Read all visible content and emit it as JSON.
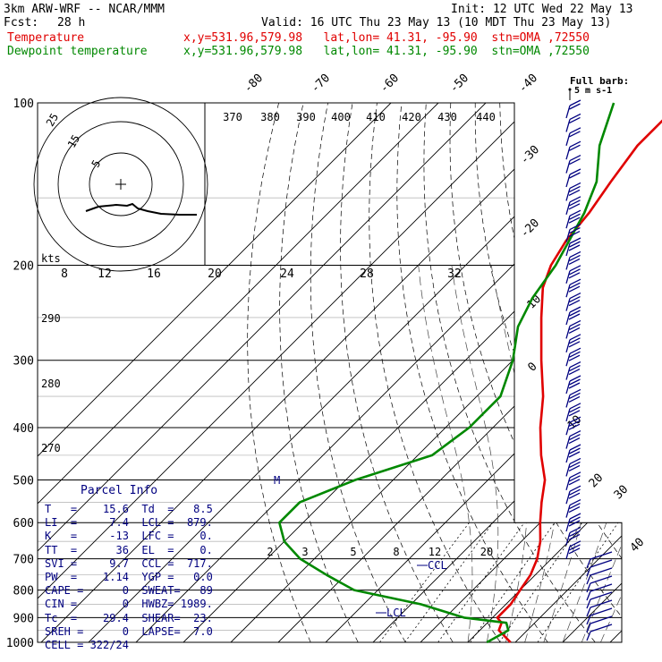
{
  "header": {
    "model": "3km ARW-WRF -- NCAR/MMM",
    "init": "Init: 12 UTC Wed 22 May 13",
    "fcst_label": "Fcst:",
    "fcst_value": "28 h",
    "valid": "Valid: 16 UTC Thu 23 May 13 (10 MDT Thu 23 May 13)",
    "temp_label": "Temperature",
    "temp_info": "x,y=531.96,579.98   lat,lon= 41.31, -95.90  stn=OMA ,72550",
    "dew_label": "Dewpoint temperature",
    "dew_info": "x,y=531.96,579.98   lat,lon= 41.31, -95.90  stn=OMA ,72550"
  },
  "colors": {
    "temperature": "#e00000",
    "dewpoint": "#008800",
    "info": "#000080"
  },
  "chart_data": {
    "type": "line",
    "title": "",
    "ylabel": "",
    "pressure_levels": [
      "100",
      "200",
      "300",
      "400",
      "500",
      "600",
      "700",
      "800",
      "900",
      "1000"
    ],
    "isotherm_labels": [
      "-80",
      "-70",
      "-60",
      "-50",
      "-40",
      "-30",
      "-20",
      "-10",
      "0",
      "10",
      "20",
      "30",
      "40"
    ],
    "theta_labels_top": [
      "370",
      "380",
      "390",
      "400",
      "410",
      "420",
      "430",
      "440"
    ],
    "theta_labels_side": [
      "290",
      "280",
      "270"
    ],
    "mixing_ratio_labels": [
      "2",
      "3",
      "5",
      "8",
      "12",
      "20"
    ],
    "hodograph": {
      "units_label": "kts",
      "speed_ticks": [
        "8",
        "12",
        "16",
        "20",
        "24",
        "28",
        "32"
      ],
      "ring_labels": [
        "5",
        "15",
        "25"
      ]
    },
    "series": [
      {
        "name": "Temperature",
        "points": [
          [
            1000,
            19
          ],
          [
            950,
            14
          ],
          [
            920,
            13
          ],
          [
            900,
            11
          ],
          [
            850,
            11
          ],
          [
            800,
            10
          ],
          [
            750,
            9
          ],
          [
            700,
            7
          ],
          [
            650,
            4
          ],
          [
            600,
            0
          ],
          [
            550,
            -4
          ],
          [
            500,
            -8
          ],
          [
            450,
            -14
          ],
          [
            400,
            -20
          ],
          [
            350,
            -26
          ],
          [
            300,
            -34
          ],
          [
            250,
            -43
          ],
          [
            220,
            -49
          ],
          [
            200,
            -52
          ],
          [
            180,
            -54
          ],
          [
            160,
            -55
          ],
          [
            140,
            -57
          ],
          [
            120,
            -59
          ],
          [
            100,
            -59
          ]
        ]
      },
      {
        "name": "Dewpoint temperature",
        "points": [
          [
            1000,
            14
          ],
          [
            950,
            16
          ],
          [
            920,
            14
          ],
          [
            900,
            4
          ],
          [
            850,
            -8
          ],
          [
            800,
            -25
          ],
          [
            750,
            -34
          ],
          [
            700,
            -43
          ],
          [
            650,
            -50
          ],
          [
            600,
            -55
          ],
          [
            550,
            -55
          ],
          [
            500,
            -48
          ],
          [
            450,
            -37
          ],
          [
            400,
            -35
          ],
          [
            350,
            -35
          ],
          [
            300,
            -40
          ],
          [
            260,
            -46
          ],
          [
            230,
            -49
          ],
          [
            200,
            -51
          ],
          [
            160,
            -56
          ],
          [
            140,
            -60
          ],
          [
            120,
            -67
          ],
          [
            100,
            -73
          ]
        ]
      }
    ],
    "annotations": [
      "CCL",
      "LCL",
      "M"
    ],
    "wind_barb_label": "Full barb:",
    "wind_barb_units": "5 m s-1"
  },
  "parcel_info": {
    "title": "Parcel Info",
    "rows": [
      "T   =    15.6  Td  =   8.5",
      "LI  =     7.4  LCL =  879.",
      "K   =     -13  LFC =    0.",
      "TT  =      36  EL  =    0.",
      "SVI =     9.7  CCL =  717.",
      "PW  =    1.14  YGP =   0.0",
      "CAPE =      0  SWEAT=   89",
      "CIN =       0  HWBZ= 1989.",
      "Tc  =    29.4  SHEAR=  23.",
      "SREH =      0  LAPSE=  7.0",
      "CELL = 322/24"
    ]
  }
}
